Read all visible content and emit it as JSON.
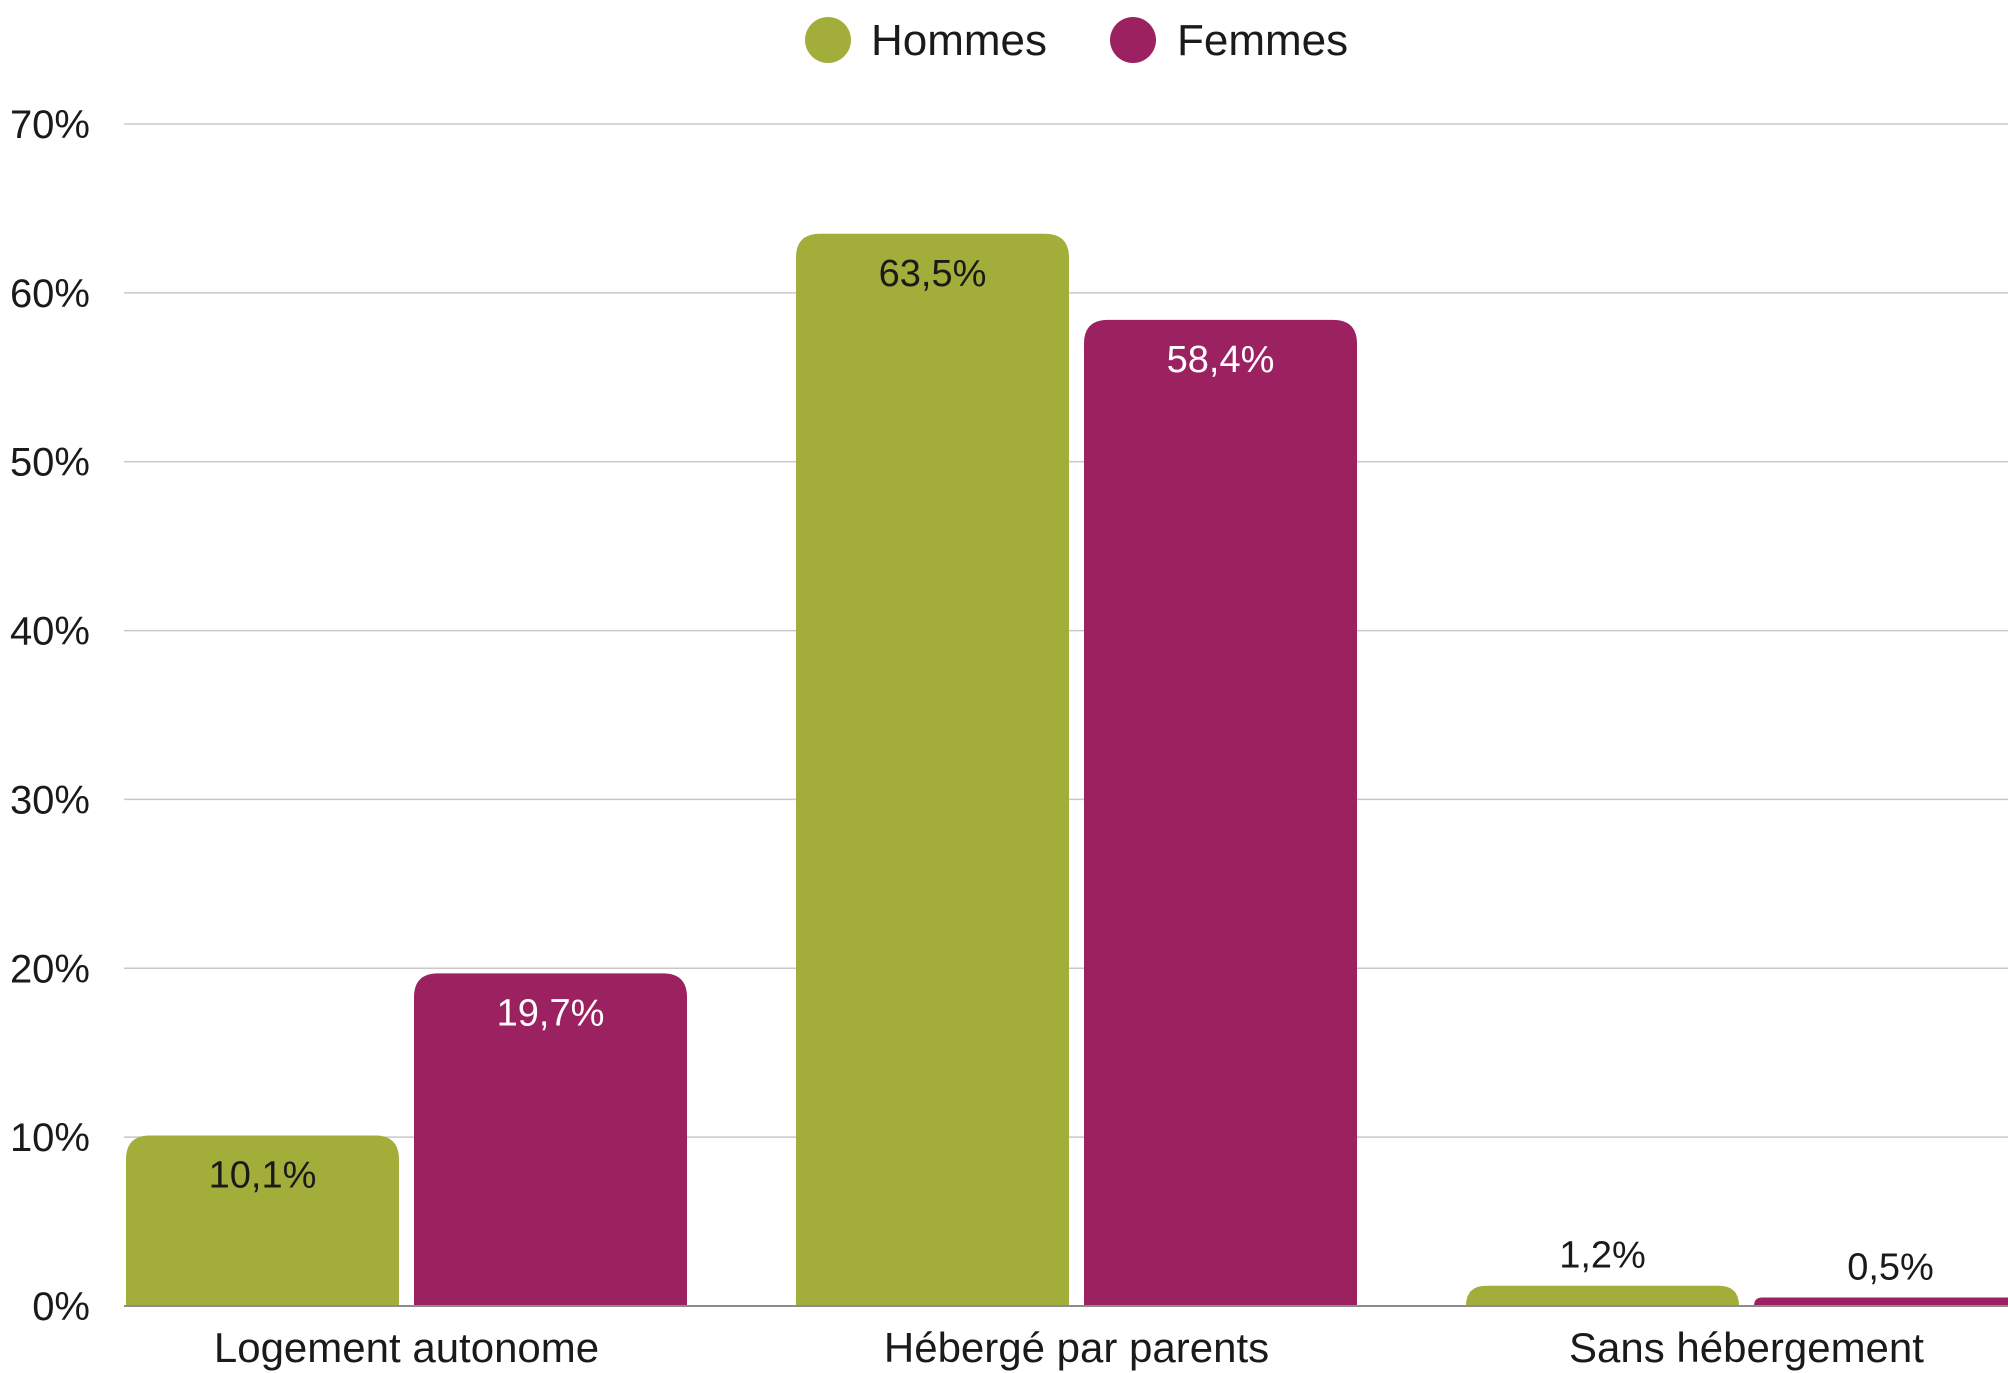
{
  "colors": {
    "hommes": "#a2ad3a",
    "femmes": "#9c2160"
  },
  "chart_data": {
    "type": "bar",
    "categories": [
      "Logement autonome",
      "Hébergé par parents",
      "Sans hébergement"
    ],
    "series": [
      {
        "name": "Hommes",
        "values": [
          10.1,
          63.5,
          1.2
        ],
        "labels": [
          "10,1%",
          "63,5%",
          "1,2%"
        ]
      },
      {
        "name": "Femmes",
        "values": [
          19.7,
          58.4,
          0.5
        ],
        "labels": [
          "19,7%",
          "58,4%",
          "0,5%"
        ]
      }
    ],
    "yticks": [
      "0%",
      "10%",
      "20%",
      "30%",
      "40%",
      "50%",
      "60%",
      "70%"
    ],
    "ylim": [
      0,
      70
    ],
    "grid": true,
    "legend": "top-center"
  }
}
